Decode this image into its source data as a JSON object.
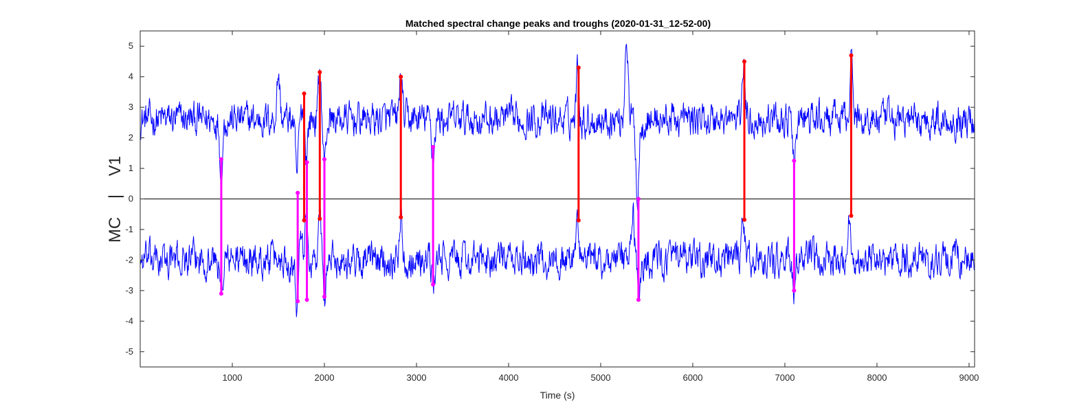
{
  "chart_data": {
    "type": "line",
    "title": "Matched spectral change peaks and troughs (2020-01-31_12-52-00)",
    "xlabel": "Time (s)",
    "ylabel": "MC    |    V1",
    "xlim": [
      0,
      9060
    ],
    "ylim": [
      -5.5,
      5.5
    ],
    "xticks": [
      1000,
      2000,
      3000,
      4000,
      5000,
      6000,
      7000,
      8000,
      9000
    ],
    "yticks": [
      -5,
      -4,
      -3,
      -2,
      -1,
      0,
      1,
      2,
      3,
      4,
      5
    ],
    "grid": false,
    "baseline": 0,
    "colors": {
      "signal": "#0000ff",
      "peak_link": "#ff0000",
      "trough_link": "#ff00ff",
      "baseline": "#000000"
    },
    "series": [
      {
        "name": "",
        "role": "upper",
        "offset": 2.6,
        "noise_sd": 0.32,
        "events": [
          [
            880,
            -1.6
          ],
          [
            1500,
            1.5
          ],
          [
            1700,
            -1.9
          ],
          [
            1780,
            0.9
          ],
          [
            1800,
            -1.5
          ],
          [
            1950,
            1.6
          ],
          [
            2000,
            -1.5
          ],
          [
            2830,
            1.4
          ],
          [
            3180,
            -1.2
          ],
          [
            4750,
            1.7
          ],
          [
            5280,
            2.9
          ],
          [
            5400,
            -2.6
          ],
          [
            6550,
            1.9
          ],
          [
            7100,
            -1.5
          ],
          [
            7720,
            2.1
          ]
        ]
      },
      {
        "name": "",
        "role": "lower",
        "offset": -2.0,
        "noise_sd": 0.32,
        "events": [
          [
            880,
            -1.1
          ],
          [
            1700,
            -1.4
          ],
          [
            1740,
            1.5
          ],
          [
            1800,
            1.3
          ],
          [
            1950,
            1.4
          ],
          [
            2000,
            -1.2
          ],
          [
            2830,
            1.5
          ],
          [
            3180,
            -0.8
          ],
          [
            4750,
            1.4
          ],
          [
            5350,
            1.6
          ],
          [
            5420,
            -1.4
          ],
          [
            6550,
            1.4
          ],
          [
            7100,
            -1.0
          ],
          [
            7700,
            1.6
          ]
        ]
      }
    ],
    "peak_links": [
      {
        "x": 1780,
        "y_top": 3.45,
        "y_bottom": -0.7
      },
      {
        "x": 1950,
        "y_top": 4.15,
        "y_bottom": -0.65
      },
      {
        "x": 2830,
        "y_top": 4.0,
        "y_bottom": -0.6
      },
      {
        "x": 4760,
        "y_top": 4.3,
        "y_bottom": -0.7
      },
      {
        "x": 6560,
        "y_top": 4.5,
        "y_bottom": -0.68
      },
      {
        "x": 7720,
        "y_top": 4.7,
        "y_bottom": -0.55
      }
    ],
    "trough_links": [
      {
        "x": 880,
        "y_top": 1.3,
        "y_bottom": -3.1
      },
      {
        "x": 1710,
        "y_top": 0.2,
        "y_bottom": -3.35
      },
      {
        "x": 1810,
        "y_top": 1.2,
        "y_bottom": -3.3
      },
      {
        "x": 2000,
        "y_top": 1.3,
        "y_bottom": -3.2
      },
      {
        "x": 3180,
        "y_top": 1.7,
        "y_bottom": -2.8
      },
      {
        "x": 5410,
        "y_top": 0.0,
        "y_bottom": -3.3
      },
      {
        "x": 7100,
        "y_top": 1.25,
        "y_bottom": -3.0
      }
    ]
  }
}
